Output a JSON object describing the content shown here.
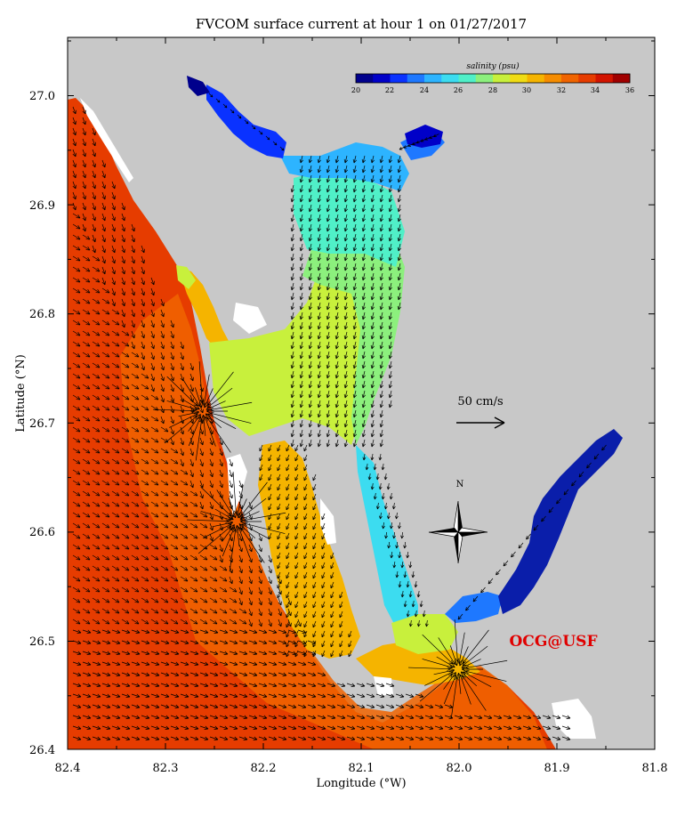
{
  "title": "FVCOM surface current at hour 1 on 01/27/2017",
  "x_axis": {
    "label": "Longitude (°W)",
    "ticks": [
      "82.4",
      "82.3",
      "82.2",
      "82.1",
      "82.0",
      "81.9",
      "81.8"
    ]
  },
  "y_axis": {
    "label": "Latitude (°N)",
    "ticks": [
      "27.0",
      "26.9",
      "26.8",
      "26.7",
      "26.6",
      "26.5",
      "26.4"
    ]
  },
  "colorbar": {
    "label": "salinity (psu)",
    "ticks": [
      "20",
      "22",
      "24",
      "26",
      "28",
      "30",
      "32",
      "34",
      "36"
    ],
    "colors": [
      "#00008c",
      "#0000c8",
      "#0a32ff",
      "#1e78ff",
      "#2db4ff",
      "#3cdcf0",
      "#50f0c8",
      "#8cf07d",
      "#c8f03c",
      "#f0dc14",
      "#f5b400",
      "#f58c00",
      "#f06400",
      "#e63c00",
      "#d21400",
      "#a00000"
    ]
  },
  "scale_arrow_label": "50 cm/s",
  "compass_label": "N",
  "brand": "OCG@USF",
  "colors": {
    "land": "#c8c8c8",
    "gulf": "#e63c00",
    "coastal": "#f06400",
    "bay": "#f5b400",
    "harbor_upper": "#50f0c8",
    "river_fresh": "#0a1eaa"
  }
}
